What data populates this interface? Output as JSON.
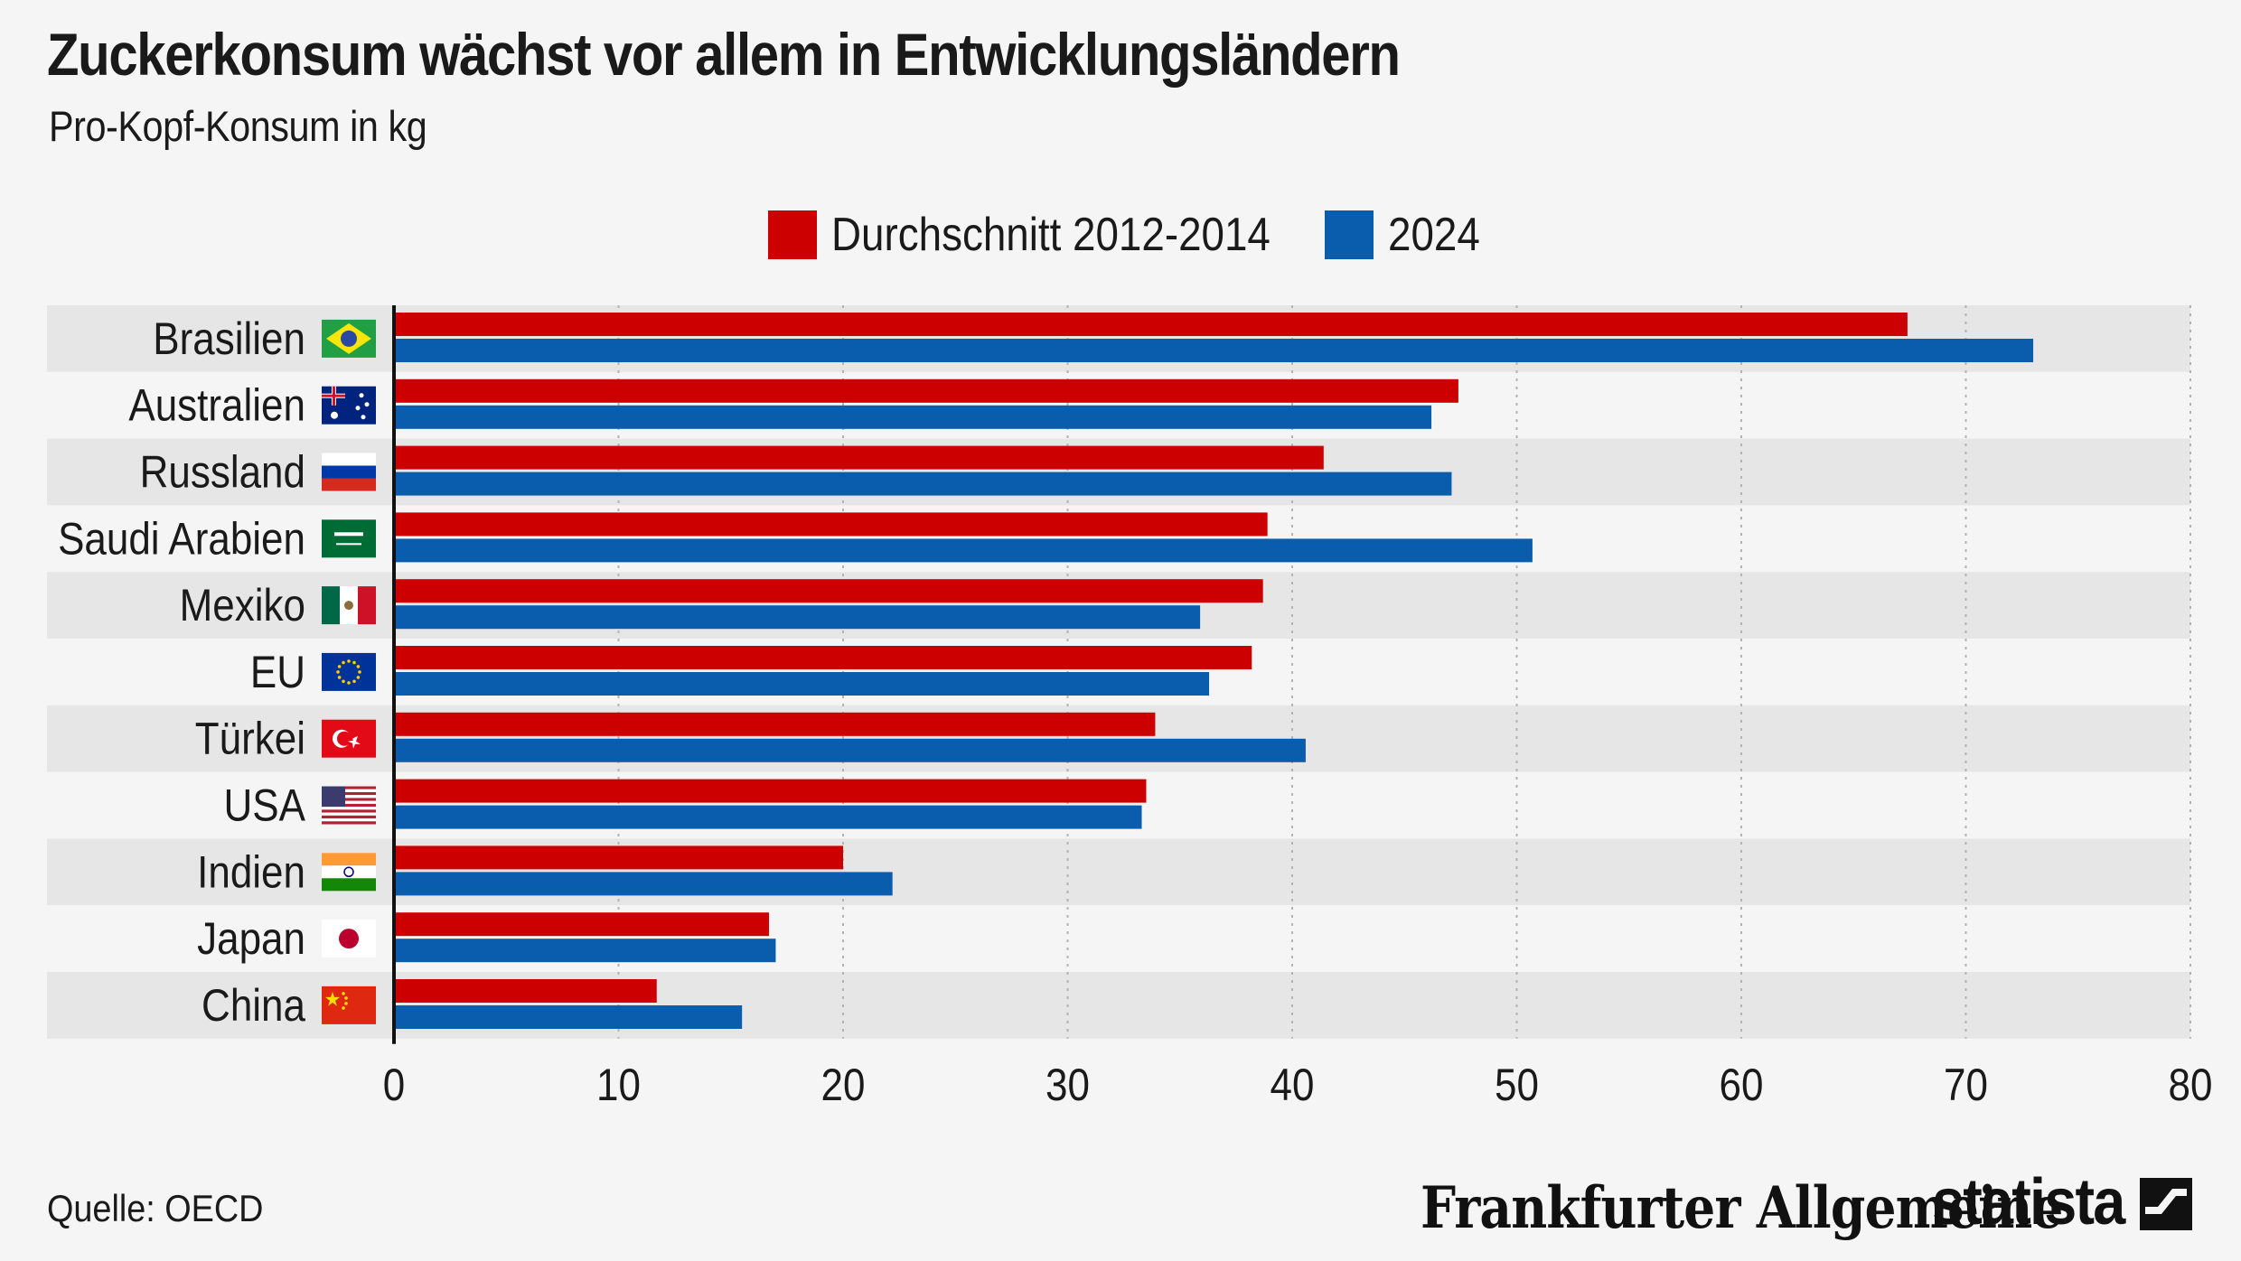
{
  "title": "Zuckerkonsum wächst vor allem in Entwicklungsländern",
  "subtitle": "Pro-Kopf-Konsum in kg",
  "source": "Quelle: OECD",
  "brand": {
    "faz": "Frankfurter Allgemeine",
    "statista": "statista"
  },
  "colors": {
    "series1": "#cc0000",
    "series2": "#0a5cad",
    "band": "#e6e6e6",
    "background": "#f5f5f5"
  },
  "legend": [
    {
      "label": "Durchschnitt 2012-2014",
      "color": "#cc0000"
    },
    {
      "label": "2024",
      "color": "#0a5cad"
    }
  ],
  "chart_data": {
    "type": "bar",
    "orientation": "horizontal",
    "categories": [
      "Brasilien",
      "Australien",
      "Russland",
      "Saudi Arabien",
      "Mexiko",
      "EU",
      "Türkei",
      "USA",
      "Indien",
      "Japan",
      "China"
    ],
    "flag_icons": [
      "brazil-flag-icon",
      "australia-flag-icon",
      "russia-flag-icon",
      "saudi-arabia-flag-icon",
      "mexico-flag-icon",
      "eu-flag-icon",
      "turkey-flag-icon",
      "usa-flag-icon",
      "india-flag-icon",
      "japan-flag-icon",
      "china-flag-icon"
    ],
    "series": [
      {
        "name": "Durchschnitt 2012-2014",
        "values": [
          67.4,
          47.4,
          41.4,
          38.9,
          38.7,
          38.2,
          33.9,
          33.5,
          20.0,
          16.7,
          11.7
        ]
      },
      {
        "name": "2024",
        "values": [
          73.0,
          46.2,
          47.1,
          50.7,
          35.9,
          36.3,
          40.6,
          33.3,
          22.2,
          17.0,
          15.5
        ]
      }
    ],
    "xlim": [
      0,
      80
    ],
    "xticks": [
      0,
      10,
      20,
      30,
      40,
      50,
      60,
      70,
      80
    ],
    "xlabel": "",
    "ylabel": "",
    "grid": "vertical dotted",
    "legend_position": "top-center"
  }
}
